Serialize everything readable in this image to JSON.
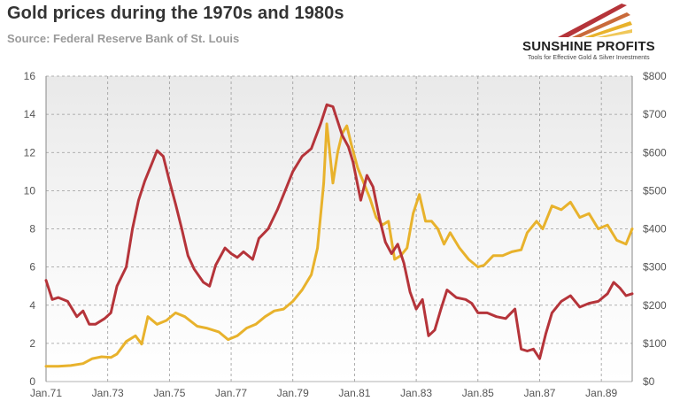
{
  "header": {
    "title": "Gold prices during the 1970s and 1980s",
    "subtitle": "Source: Federal Reserve Bank of St. Louis"
  },
  "logo": {
    "name": "SUNSHINE PROFITS",
    "tagline": "Tools for Effective Gold & Silver Investments"
  },
  "colors": {
    "red_series": "#b5343a",
    "gold_series": "#e8b22c",
    "grid": "#9a9a9a",
    "plot_top": "#ececec",
    "plot_bottom": "#ffffff"
  },
  "chart_data": {
    "type": "line",
    "grid": true,
    "x_ticks": [
      "Jan.71",
      "Jan.73",
      "Jan.75",
      "Jan.77",
      "Jan.79",
      "Jan.81",
      "Jan.83",
      "Jan.85",
      "Jan.87",
      "Jan.89"
    ],
    "x_tick_values": [
      1971,
      1973,
      1975,
      1977,
      1979,
      1981,
      1983,
      1985,
      1987,
      1989
    ],
    "xlim": [
      1971,
      1990
    ],
    "y_left_ticks": [
      "0",
      "2",
      "4",
      "6",
      "8",
      "10",
      "12",
      "14",
      "16"
    ],
    "ylim_left": [
      0,
      16
    ],
    "y_right_ticks": [
      "$0",
      "$100",
      "$200",
      "$300",
      "$400",
      "$500",
      "$600",
      "$700",
      "$800"
    ],
    "ylim_right": [
      0,
      800
    ],
    "series": [
      {
        "axis": "left",
        "color": "#b5343a",
        "x": [
          1971.0,
          1971.2,
          1971.4,
          1971.7,
          1972.0,
          1972.2,
          1972.4,
          1972.6,
          1972.9,
          1973.1,
          1973.3,
          1973.6,
          1973.8,
          1974.0,
          1974.2,
          1974.4,
          1974.6,
          1974.8,
          1975.0,
          1975.2,
          1975.4,
          1975.6,
          1975.8,
          1976.1,
          1976.3,
          1976.5,
          1976.8,
          1977.0,
          1977.2,
          1977.4,
          1977.7,
          1977.9,
          1978.2,
          1978.5,
          1978.8,
          1979.0,
          1979.3,
          1979.6,
          1979.9,
          1980.1,
          1980.3,
          1980.6,
          1980.8,
          1980.95,
          1981.2,
          1981.4,
          1981.6,
          1981.8,
          1982.0,
          1982.2,
          1982.4,
          1982.6,
          1982.8,
          1983.0,
          1983.2,
          1983.4,
          1983.6,
          1983.8,
          1984.0,
          1984.3,
          1984.6,
          1984.8,
          1985.0,
          1985.3,
          1985.6,
          1985.9,
          1986.2,
          1986.4,
          1986.6,
          1986.8,
          1987.0,
          1987.2,
          1987.4,
          1987.7,
          1988.0,
          1988.3,
          1988.6,
          1988.9,
          1989.2,
          1989.4,
          1989.6,
          1989.8,
          1990.0
        ],
        "y": [
          5.3,
          4.3,
          4.4,
          4.2,
          3.4,
          3.7,
          3.0,
          3.0,
          3.3,
          3.6,
          5.0,
          6.0,
          8.0,
          9.5,
          10.5,
          11.3,
          12.1,
          11.8,
          10.5,
          9.3,
          8.0,
          6.6,
          5.9,
          5.2,
          5.0,
          6.1,
          7.0,
          6.7,
          6.5,
          6.8,
          6.4,
          7.5,
          8.0,
          9.0,
          10.2,
          11.0,
          11.8,
          12.2,
          13.5,
          14.5,
          14.4,
          12.9,
          12.3,
          11.5,
          9.5,
          10.8,
          10.2,
          8.6,
          7.3,
          6.7,
          7.2,
          6.2,
          4.7,
          3.8,
          4.3,
          2.4,
          2.7,
          3.8,
          4.8,
          4.4,
          4.3,
          4.1,
          3.6,
          3.6,
          3.4,
          3.3,
          3.8,
          1.7,
          1.6,
          1.7,
          1.2,
          2.5,
          3.6,
          4.2,
          4.5,
          3.9,
          4.1,
          4.2,
          4.6,
          5.2,
          4.9,
          4.5,
          4.6
        ]
      },
      {
        "axis": "right",
        "color": "#e8b22c",
        "x": [
          1971.0,
          1971.4,
          1971.8,
          1972.2,
          1972.5,
          1972.8,
          1973.1,
          1973.3,
          1973.6,
          1973.9,
          1974.1,
          1974.3,
          1974.6,
          1974.9,
          1975.2,
          1975.5,
          1975.9,
          1976.2,
          1976.6,
          1976.9,
          1977.2,
          1977.5,
          1977.8,
          1978.1,
          1978.4,
          1978.7,
          1979.0,
          1979.3,
          1979.6,
          1979.8,
          1980.0,
          1980.1,
          1980.3,
          1980.45,
          1980.6,
          1980.75,
          1980.9,
          1981.1,
          1981.3,
          1981.5,
          1981.7,
          1981.9,
          1982.1,
          1982.3,
          1982.5,
          1982.7,
          1982.9,
          1983.1,
          1983.3,
          1983.5,
          1983.7,
          1983.9,
          1984.1,
          1984.4,
          1984.7,
          1985.0,
          1985.2,
          1985.5,
          1985.8,
          1986.1,
          1986.4,
          1986.6,
          1986.9,
          1987.1,
          1987.4,
          1987.7,
          1988.0,
          1988.3,
          1988.6,
          1988.9,
          1989.2,
          1989.5,
          1989.8,
          1990.0
        ],
        "y": [
          40,
          40,
          42,
          47,
          60,
          65,
          63,
          72,
          105,
          120,
          98,
          170,
          150,
          160,
          180,
          170,
          145,
          140,
          130,
          110,
          120,
          140,
          150,
          170,
          185,
          190,
          210,
          240,
          280,
          350,
          520,
          675,
          520,
          600,
          650,
          670,
          620,
          560,
          520,
          480,
          430,
          410,
          420,
          320,
          330,
          350,
          440,
          490,
          420,
          420,
          400,
          360,
          390,
          350,
          320,
          300,
          305,
          330,
          330,
          340,
          345,
          390,
          420,
          400,
          460,
          450,
          470,
          430,
          440,
          400,
          410,
          370,
          360,
          400
        ]
      }
    ]
  }
}
